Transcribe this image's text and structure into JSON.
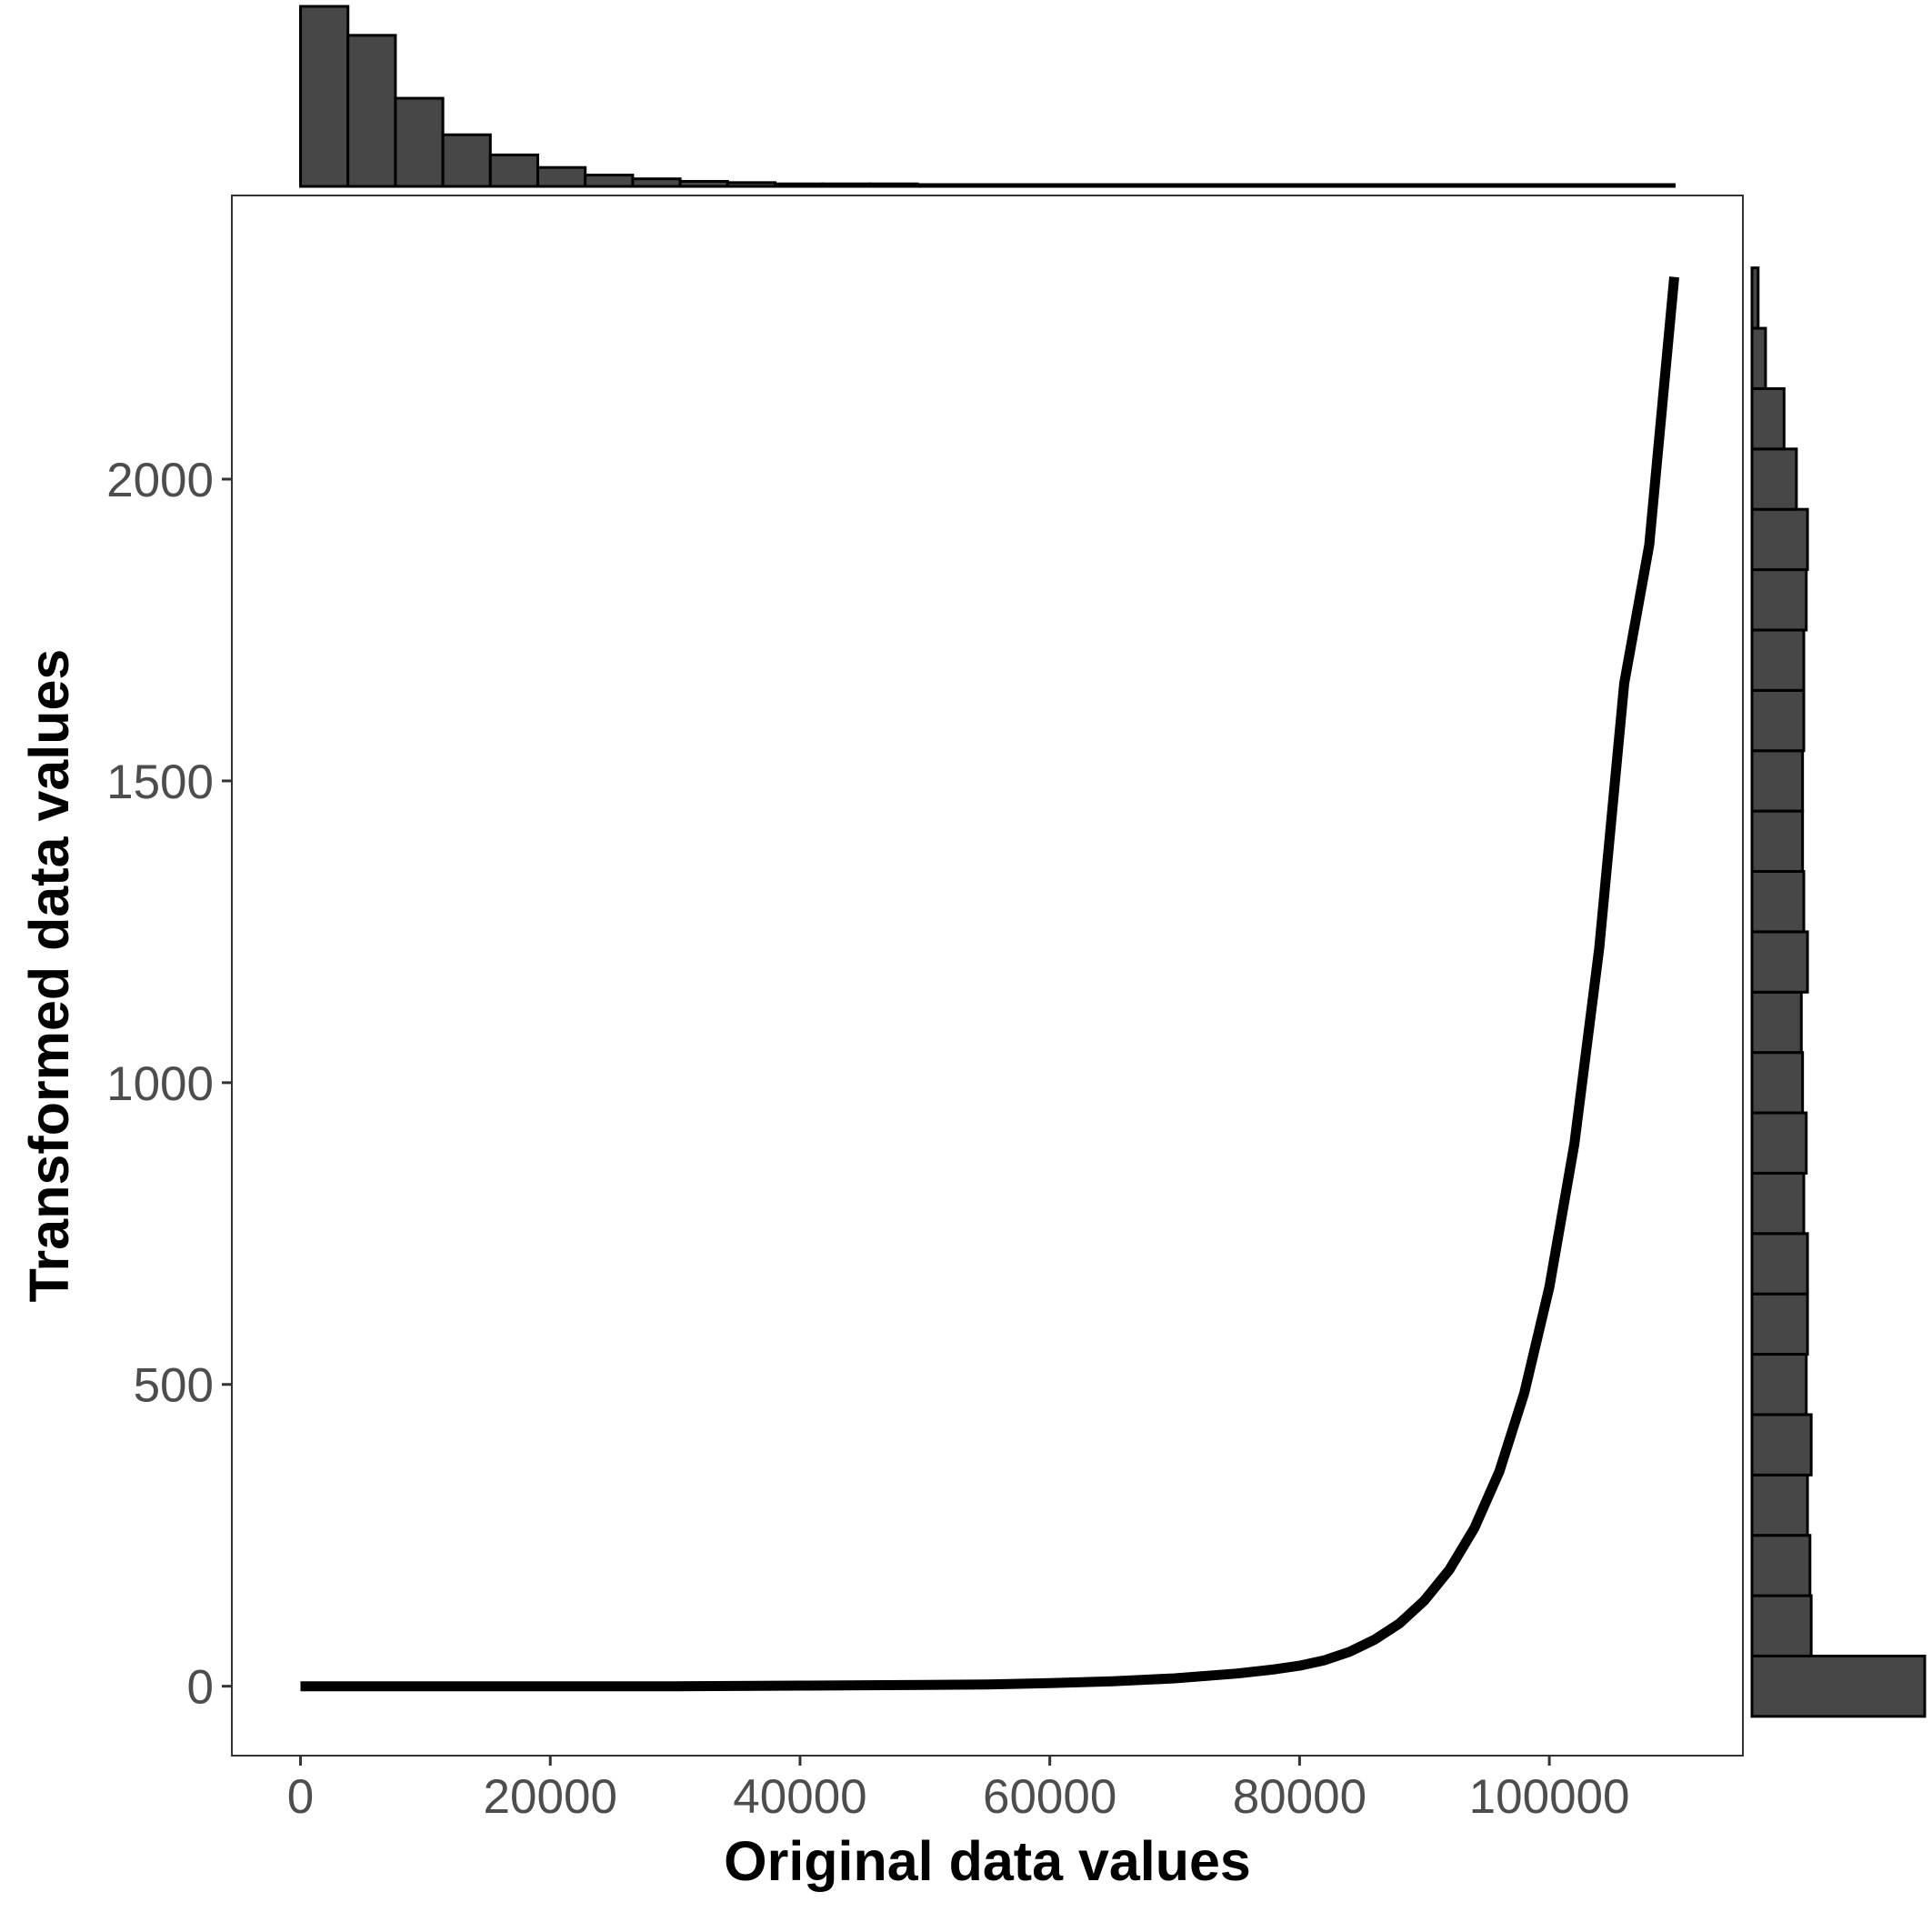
{
  "chart_data": {
    "type": "line",
    "title": "",
    "xlabel": "Original data values",
    "ylabel": "Transformed data values",
    "xlim": [
      -5500,
      115500
    ],
    "ylim": [
      -115,
      2470
    ],
    "x_ticks": [
      "0",
      "20000",
      "40000",
      "60000",
      "80000",
      "100000"
    ],
    "y_ticks": [
      "0",
      "500",
      "1000",
      "1500",
      "2000"
    ],
    "grid": false,
    "legend": "none",
    "line_color": "#000000",
    "bar_fill": "#474747",
    "bar_stroke": "#000000",
    "series": [
      {
        "x": [
          0,
          10000,
          20000,
          30000,
          40000,
          50000,
          55000,
          60000,
          65000,
          70000,
          75000,
          78000,
          80000,
          82000,
          84000,
          86000,
          88000,
          90000,
          92000,
          94000,
          96000,
          98000,
          100000,
          102000,
          104000,
          106000,
          108000,
          110000
        ],
        "y": [
          0,
          0,
          0,
          0,
          1,
          2,
          3,
          5,
          8,
          13,
          21,
          28,
          34,
          43,
          57,
          77,
          104,
          142,
          193,
          262,
          356,
          486,
          661,
          898,
          1223,
          1662,
          1891,
          2335
        ]
      }
    ],
    "x_marginal_histogram": {
      "bin_edges": [
        0,
        3800,
        7600,
        11400,
        15200,
        19000,
        22800,
        26600,
        30400,
        34200,
        38000,
        41800,
        45600,
        49400,
        53200,
        57000,
        60800,
        64600,
        68400,
        72200,
        76000,
        79800,
        83600,
        87400,
        91200,
        95000,
        98800,
        102600,
        106400,
        110000
      ],
      "counts": [
        143,
        120,
        70,
        41,
        25,
        15,
        9,
        6,
        4,
        3,
        2,
        2,
        2,
        1,
        1,
        1,
        1,
        1,
        1,
        1,
        1,
        1,
        1,
        1,
        1,
        1,
        0,
        0,
        0
      ]
    },
    "y_marginal_histogram": {
      "bin_edges": [
        -50,
        50,
        150,
        250,
        350,
        450,
        550,
        650,
        750,
        850,
        950,
        1050,
        1150,
        1250,
        1350,
        1450,
        1550,
        1650,
        1750,
        1850,
        1950,
        2050,
        2150,
        2250,
        2350
      ],
      "counts": [
        140,
        48,
        47,
        45,
        48,
        44,
        45,
        45,
        42,
        44,
        41,
        40,
        45,
        42,
        41,
        41,
        42,
        42,
        44,
        45,
        36,
        26,
        11,
        5
      ]
    }
  }
}
